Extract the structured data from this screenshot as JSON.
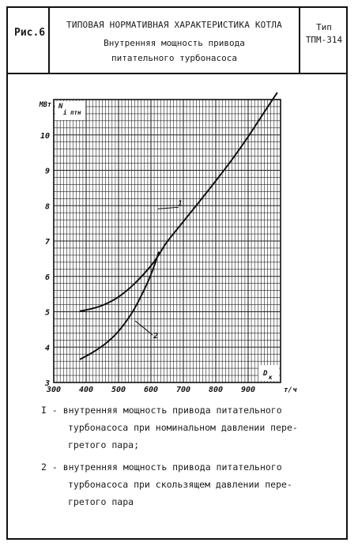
{
  "header": {
    "figure_label": "Рис.6",
    "main_title": "ТИПОВАЯ НОРМАТИВНАЯ ХАРАКТЕРИСТИКА КОТЛА",
    "subtitle_line1": "Внутренняя мощность привода",
    "subtitle_line2": "питательного турбонасоса",
    "type_line1": "Тип",
    "type_line2": "ТПМ-314"
  },
  "chart_data": {
    "type": "line",
    "y_unit": "МВт",
    "y_symbol": "N",
    "y_subscript": "i птн",
    "x_symbol": "D",
    "x_subscript": "к",
    "x_unit": "т/ч",
    "xlim": [
      300,
      1000
    ],
    "ylim": [
      3,
      11
    ],
    "x_ticks": [
      "300",
      "400",
      "500",
      "600",
      "700",
      "800",
      "900"
    ],
    "y_ticks": [
      "3",
      "4",
      "5",
      "6",
      "7",
      "8",
      "9",
      "10"
    ],
    "grid": true,
    "series": [
      {
        "name": "1",
        "x": [
          380,
          400,
          450,
          500,
          550,
          600,
          625,
          650,
          700,
          750,
          800,
          850,
          900,
          950,
          990
        ],
        "y": [
          5.02,
          5.05,
          5.18,
          5.42,
          5.8,
          6.3,
          6.62,
          6.98,
          7.55,
          8.12,
          8.7,
          9.3,
          9.95,
          10.65,
          11.2
        ]
      },
      {
        "name": "2",
        "x": [
          380,
          420,
          460,
          500,
          540,
          570,
          600,
          625
        ],
        "y": [
          3.65,
          3.85,
          4.1,
          4.45,
          4.95,
          5.45,
          6.05,
          6.7
        ]
      }
    ],
    "annotations": [
      {
        "label": "1",
        "x": 690,
        "y": 8.0
      },
      {
        "label": "2",
        "x": 615,
        "y": 4.25
      }
    ]
  },
  "legend": {
    "item1_line1": "I - внутренняя мощность привода питательного",
    "item1_line2": "турбонасоса при номинальном давлении пере-",
    "item1_line3": "гретого пара;",
    "item2_line1": "2 - внутренняя мощность привода питательного",
    "item2_line2": "турбонасоса при скользящем давлении пере-",
    "item2_line3": "гретого пара"
  }
}
